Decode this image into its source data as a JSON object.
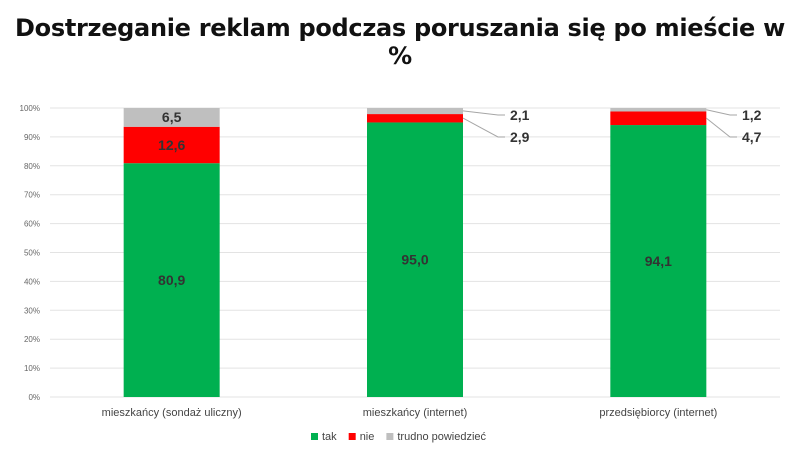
{
  "chart_data": {
    "type": "bar",
    "stacked": true,
    "title": "Dostrzeganie reklam podczas poruszania się po mieście w %",
    "categories": [
      "mieszkańcy (sondaż uliczny)",
      "mieszkańcy (internet)",
      "przedsiębiorcy (internet)"
    ],
    "series": [
      {
        "name": "tak",
        "color": "#00b050",
        "values": [
          80.9,
          95.0,
          94.1
        ],
        "labels": [
          "80,9",
          "95,0",
          "94,1"
        ]
      },
      {
        "name": "nie",
        "color": "#ff0000",
        "values": [
          12.6,
          2.9,
          4.7
        ],
        "labels": [
          "12,6",
          "2,9",
          "4,7"
        ]
      },
      {
        "name": "trudno powiedzieć",
        "color": "#bfbfbf",
        "values": [
          6.5,
          2.1,
          1.2
        ],
        "labels": [
          "6,5",
          "2,1",
          "1,2"
        ]
      }
    ],
    "ylim": [
      0,
      100
    ],
    "yticks": [
      "0%",
      "10%",
      "20%",
      "30%",
      "40%",
      "50%",
      "60%",
      "70%",
      "80%",
      "90%",
      "100%"
    ],
    "grid": true,
    "legend": "bottom"
  }
}
